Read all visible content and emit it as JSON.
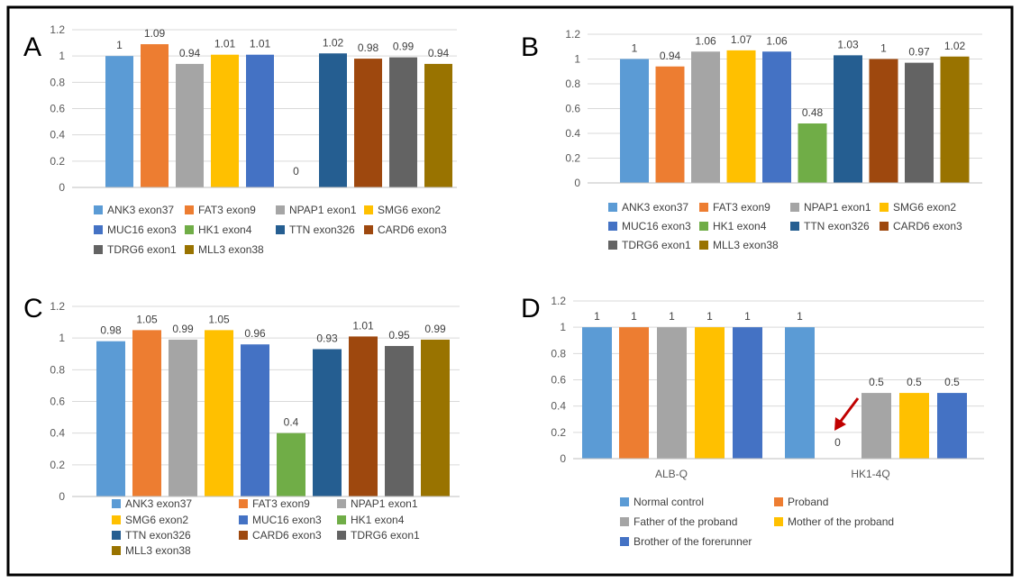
{
  "colors": {
    "ANK3 exon37": "#5b9bd5",
    "FAT3 exon9": "#ed7d31",
    "NPAP1 exon1": "#a5a5a5",
    "SMG6 exon2": "#ffc000",
    "MUC16 exon3": "#4472c4",
    "HK1 exon4": "#70ad47",
    "TTN exon326": "#255e91",
    "CARD6 exon3": "#9e480e",
    "TDRG6 exon1": "#636363",
    "MLL3 exon38": "#997300",
    "Normal control": "#5b9bd5",
    "Proband": "#ed7d31",
    "Father of the proband": "#a5a5a5",
    "Mother of the proband": "#ffc000",
    "Brother of the forerunner": "#4472c4",
    "frame": "#000000",
    "arrow": "#c00000"
  },
  "chart_data": [
    {
      "panel": "A",
      "type": "bar",
      "categories": [
        "ANK3 exon37",
        "FAT3 exon9",
        "NPAP1 exon1",
        "SMG6 exon2",
        "MUC16 exon3",
        "HK1 exon4",
        "TTN exon326",
        "CARD6 exon3",
        "TDRG6 exon1",
        "MLL3 exon38"
      ],
      "values": [
        1,
        1.09,
        0.94,
        1.01,
        1.01,
        0,
        1.02,
        0.98,
        0.99,
        0.94
      ],
      "labels": [
        "1",
        "1.09",
        "0.94",
        "1.01",
        "1.01",
        "0",
        "1.02",
        "0.98",
        "0.99",
        "0.94"
      ],
      "ylim": [
        0,
        1.2
      ],
      "yticks": [
        "0",
        "0.2",
        "0.4",
        "0.6",
        "0.8",
        "1",
        "1.2"
      ],
      "grid": true,
      "legend": "bottom",
      "legend_rows": [
        [
          "ANK3 exon37",
          "FAT3 exon9",
          "NPAP1 exon1",
          "SMG6 exon2"
        ],
        [
          "MUC16 exon3",
          "HK1 exon4",
          "TTN exon326",
          "CARD6 exon3"
        ],
        [
          "TDRG6 exon1",
          "MLL3 exon38"
        ]
      ]
    },
    {
      "panel": "B",
      "type": "bar",
      "categories": [
        "ANK3 exon37",
        "FAT3 exon9",
        "NPAP1 exon1",
        "SMG6 exon2",
        "MUC16 exon3",
        "HK1 exon4",
        "TTN exon326",
        "CARD6 exon3",
        "TDRG6 exon1",
        "MLL3 exon38"
      ],
      "values": [
        1,
        0.94,
        1.06,
        1.07,
        1.06,
        0.48,
        1.03,
        1,
        0.97,
        1.02
      ],
      "labels": [
        "1",
        "0.94",
        "1.06",
        "1.07",
        "1.06",
        "0.48",
        "1.03",
        "1",
        "0.97",
        "1.02"
      ],
      "ylim": [
        0,
        1.2
      ],
      "yticks": [
        "0",
        "0.2",
        "0.4",
        "0.6",
        "0.8",
        "1",
        "1.2"
      ],
      "grid": true,
      "legend": "bottom",
      "legend_rows": [
        [
          "ANK3 exon37",
          "FAT3 exon9",
          "NPAP1 exon1",
          "SMG6 exon2"
        ],
        [
          "MUC16 exon3",
          "HK1 exon4",
          "TTN exon326",
          "CARD6 exon3"
        ],
        [
          "TDRG6 exon1",
          "MLL3 exon38"
        ]
      ]
    },
    {
      "panel": "C",
      "type": "bar",
      "categories": [
        "ANK3 exon37",
        "FAT3 exon9",
        "NPAP1 exon1",
        "SMG6 exon2",
        "MUC16 exon3",
        "HK1 exon4",
        "TTN exon326",
        "CARD6 exon3",
        "TDRG6 exon1",
        "MLL3 exon38"
      ],
      "values": [
        0.98,
        1.05,
        0.99,
        1.05,
        0.96,
        0.4,
        0.93,
        1.01,
        0.95,
        0.99
      ],
      "labels": [
        "0.98",
        "1.05",
        "0.99",
        "1.05",
        "0.96",
        "0.4",
        "0.93",
        "1.01",
        "0.95",
        "0.99"
      ],
      "ylim": [
        0,
        1.2
      ],
      "yticks": [
        "0",
        "0.2",
        "0.4",
        "0.6",
        "0.8",
        "1",
        "1.2"
      ],
      "grid": true,
      "legend": "bottom",
      "legend_rows": [
        [
          "ANK3 exon37",
          "FAT3 exon9",
          "NPAP1 exon1"
        ],
        [
          "SMG6 exon2",
          "MUC16 exon3",
          "HK1 exon4"
        ],
        [
          "TTN exon326",
          "CARD6 exon3",
          "TDRG6 exon1"
        ],
        [
          "MLL3 exon38"
        ]
      ]
    },
    {
      "panel": "D",
      "type": "bar",
      "categories": [
        "ALB-Q",
        "HK1-4Q"
      ],
      "series": [
        {
          "name": "Normal control",
          "values": [
            1,
            1
          ],
          "labels": [
            "1",
            "1"
          ]
        },
        {
          "name": "Proband",
          "values": [
            1,
            0
          ],
          "labels": [
            "1",
            "0"
          ]
        },
        {
          "name": "Father of the proband",
          "values": [
            1,
            0.5
          ],
          "labels": [
            "1",
            "0.5"
          ]
        },
        {
          "name": "Mother of the proband",
          "values": [
            1,
            0.5
          ],
          "labels": [
            "1",
            "0.5"
          ]
        },
        {
          "name": "Brother of the forerunner",
          "values": [
            1,
            0.5
          ],
          "labels": [
            "1",
            "0.5"
          ]
        }
      ],
      "ylim": [
        0,
        1.2
      ],
      "yticks": [
        "0",
        "0.2",
        "0.4",
        "0.6",
        "0.8",
        "1",
        "1.2"
      ],
      "grid": true,
      "legend": "bottom",
      "legend_rows": [
        [
          "Normal control",
          "Proband"
        ],
        [
          "Father of the proband",
          "Mother of the proband"
        ],
        [
          "Brother of the forerunner"
        ]
      ],
      "annotation": "arrow pointing at proband HK1-4Q value 0"
    }
  ]
}
